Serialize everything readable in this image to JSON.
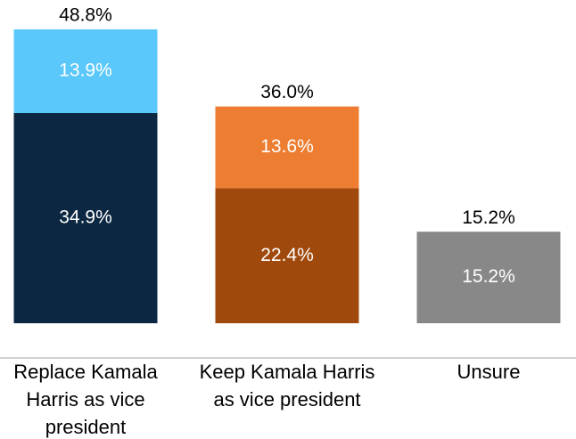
{
  "chart_data": {
    "type": "stacked_bar",
    "categories": [
      "Replace Kamala Harris as vice president",
      "Keep Kamala Harris as vice president",
      "Unsure"
    ],
    "series": [
      {
        "colors": [
          "#0c2742",
          "#a0490c",
          "#888888"
        ],
        "values": [
          34.9,
          22.4,
          15.2
        ],
        "value_labels": [
          "34.9%",
          "22.4%",
          "15.2%"
        ]
      },
      {
        "colors": [
          "#5ac8fa",
          "#ed7d31",
          null
        ],
        "values": [
          13.9,
          13.6,
          null
        ],
        "value_labels": [
          "13.9%",
          "13.6%",
          null
        ]
      }
    ],
    "total_labels": [
      "48.8%",
      "36.0%",
      "15.2%"
    ]
  }
}
